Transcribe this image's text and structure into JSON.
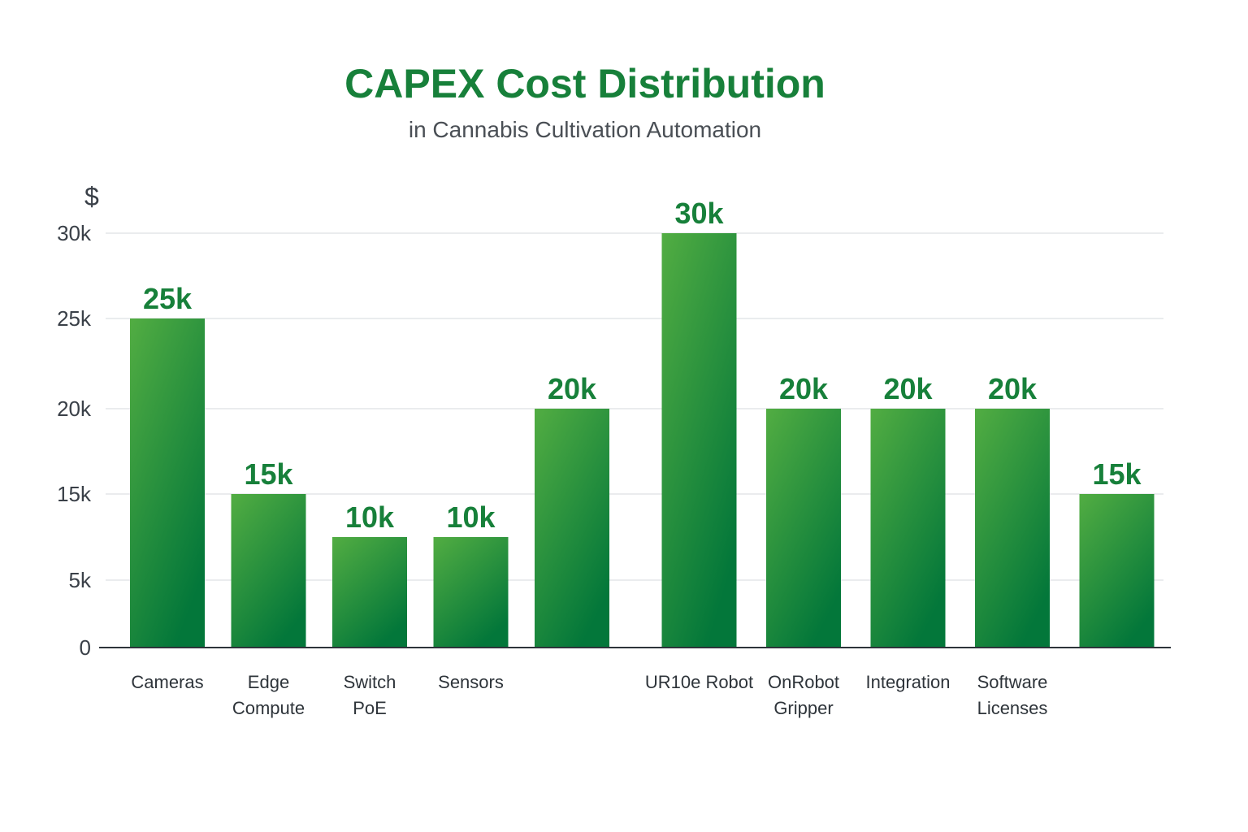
{
  "chart_data": {
    "type": "bar",
    "title": "CAPEX Cost Distribution",
    "subtitle": "in Cannabis Cultivation Automation",
    "ylabel": "$",
    "xlabel": "",
    "ylim": [
      0,
      30000
    ],
    "yticks": [
      0,
      5000,
      15000,
      20000,
      25000,
      30000
    ],
    "ytick_labels": [
      "0",
      "5k",
      "15k",
      "20k",
      "25k",
      "30k"
    ],
    "grid": true,
    "categories": [
      "Cameras",
      "Edge\nCompute",
      "Switch\nPoE",
      "Sensors",
      "",
      "UR10e Robot",
      "OnRobot\nGripper",
      "Integration",
      "Software\nLicenses",
      ""
    ],
    "values": [
      25000,
      15000,
      10000,
      10000,
      20000,
      30000,
      20000,
      20000,
      20000,
      15000
    ],
    "data_labels": [
      "25k",
      "15k",
      "10k",
      "10k",
      "20k",
      "30k",
      "20k",
      "20k",
      "20k",
      "15k"
    ],
    "colors": {
      "bar_top": "#52ad42",
      "bar_bottom": "#03773a",
      "title": "#17803a",
      "grid": "#e3e5e8",
      "axis": "#2e343a"
    }
  }
}
